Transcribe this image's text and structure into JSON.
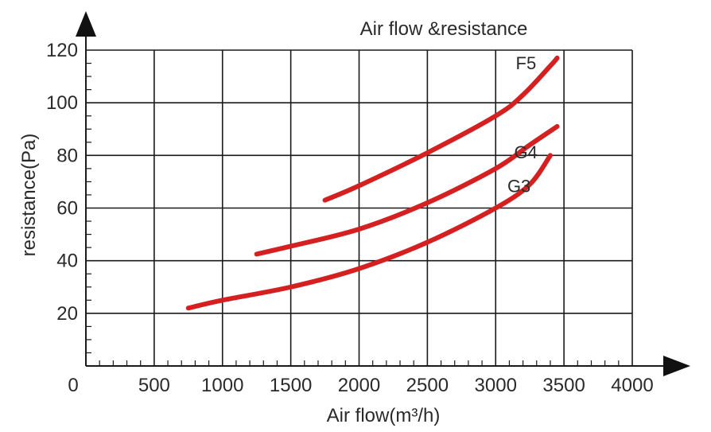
{
  "chart_data": {
    "type": "line",
    "title": "Air flow &resistance",
    "xlabel": "Air flow(m³/h)",
    "ylabel": "resistance(Pa)",
    "xlim": [
      0,
      4000
    ],
    "ylim": [
      0,
      120
    ],
    "x_ticks": [
      0,
      500,
      1000,
      1500,
      2000,
      2500,
      3000,
      3500,
      4000
    ],
    "y_ticks": [
      20,
      40,
      60,
      80,
      100,
      120
    ],
    "grid": true,
    "line_color": "#d42020",
    "series": [
      {
        "name": "F5",
        "points": [
          [
            1750,
            63
          ],
          [
            2000,
            68.5
          ],
          [
            2500,
            81
          ],
          [
            3000,
            95
          ],
          [
            3200,
            103
          ],
          [
            3400,
            114
          ],
          [
            3450,
            117
          ]
        ]
      },
      {
        "name": "G4",
        "points": [
          [
            1250,
            42.5
          ],
          [
            1500,
            45.5
          ],
          [
            2000,
            52
          ],
          [
            2500,
            62
          ],
          [
            3000,
            75
          ],
          [
            3250,
            84
          ],
          [
            3450,
            91
          ]
        ]
      },
      {
        "name": "G3",
        "points": [
          [
            750,
            22
          ],
          [
            1000,
            25
          ],
          [
            1500,
            30
          ],
          [
            2000,
            37
          ],
          [
            2500,
            47
          ],
          [
            3000,
            60
          ],
          [
            3250,
            69
          ],
          [
            3400,
            80
          ]
        ]
      }
    ]
  }
}
